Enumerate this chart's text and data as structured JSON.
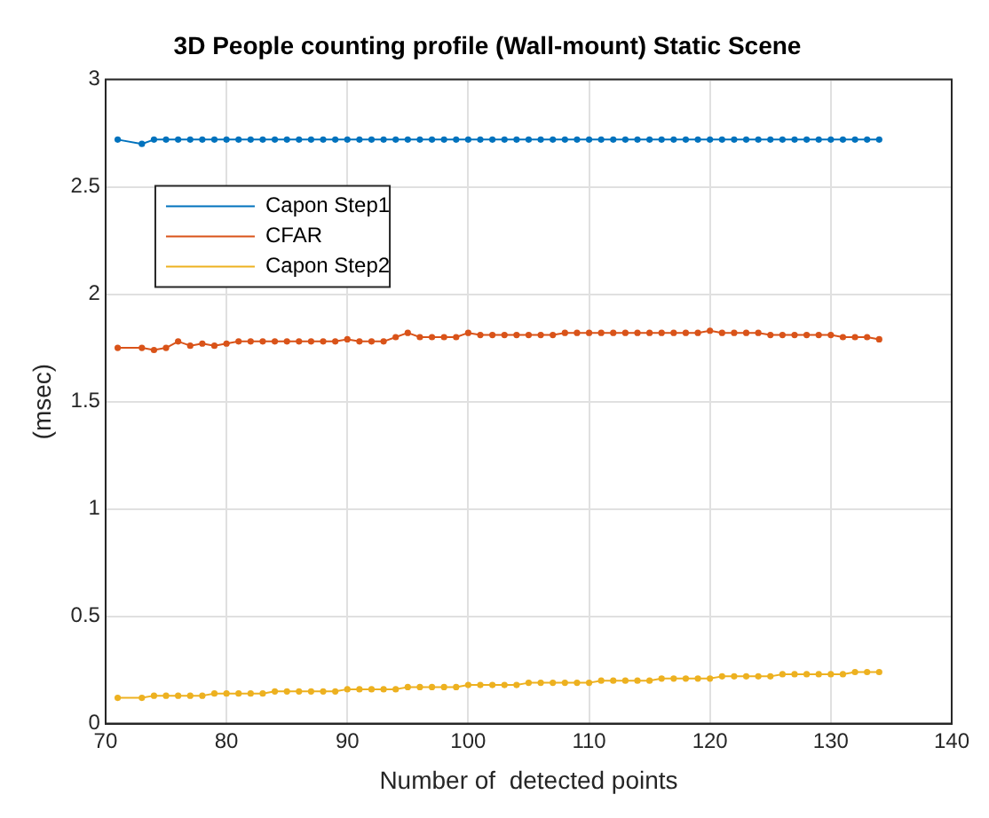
{
  "chart_data": {
    "type": "line",
    "title": "3D People counting profile (Wall-mount) Static Scene",
    "xlabel": "Number of  detected points",
    "ylabel": "(msec)",
    "x": [
      71,
      73,
      74,
      75,
      76,
      77,
      78,
      79,
      80,
      81,
      82,
      83,
      84,
      85,
      86,
      87,
      88,
      89,
      90,
      91,
      92,
      93,
      94,
      95,
      96,
      97,
      98,
      99,
      100,
      101,
      102,
      103,
      104,
      105,
      106,
      107,
      108,
      109,
      110,
      111,
      112,
      113,
      114,
      115,
      116,
      117,
      118,
      119,
      120,
      121,
      122,
      123,
      124,
      125,
      126,
      127,
      128,
      129,
      130,
      131,
      132,
      133,
      134
    ],
    "series": [
      {
        "name": "Capon Step1",
        "color": "#0072bd",
        "values": [
          2.72,
          2.7,
          2.72,
          2.72,
          2.72,
          2.72,
          2.72,
          2.72,
          2.72,
          2.72,
          2.72,
          2.72,
          2.72,
          2.72,
          2.72,
          2.72,
          2.72,
          2.72,
          2.72,
          2.72,
          2.72,
          2.72,
          2.72,
          2.72,
          2.72,
          2.72,
          2.72,
          2.72,
          2.72,
          2.72,
          2.72,
          2.72,
          2.72,
          2.72,
          2.72,
          2.72,
          2.72,
          2.72,
          2.72,
          2.72,
          2.72,
          2.72,
          2.72,
          2.72,
          2.72,
          2.72,
          2.72,
          2.72,
          2.72,
          2.72,
          2.72,
          2.72,
          2.72,
          2.72,
          2.72,
          2.72,
          2.72,
          2.72,
          2.72,
          2.72,
          2.72,
          2.72,
          2.72
        ]
      },
      {
        "name": "CFAR",
        "color": "#d95319",
        "values": [
          1.75,
          1.75,
          1.74,
          1.75,
          1.78,
          1.76,
          1.77,
          1.76,
          1.77,
          1.78,
          1.78,
          1.78,
          1.78,
          1.78,
          1.78,
          1.78,
          1.78,
          1.78,
          1.79,
          1.78,
          1.78,
          1.78,
          1.8,
          1.82,
          1.8,
          1.8,
          1.8,
          1.8,
          1.82,
          1.81,
          1.81,
          1.81,
          1.81,
          1.81,
          1.81,
          1.81,
          1.82,
          1.82,
          1.82,
          1.82,
          1.82,
          1.82,
          1.82,
          1.82,
          1.82,
          1.82,
          1.82,
          1.82,
          1.83,
          1.82,
          1.82,
          1.82,
          1.82,
          1.81,
          1.81,
          1.81,
          1.81,
          1.81,
          1.81,
          1.8,
          1.8,
          1.8,
          1.79
        ]
      },
      {
        "name": "Capon Step2",
        "color": "#edb120",
        "values": [
          0.12,
          0.12,
          0.13,
          0.13,
          0.13,
          0.13,
          0.13,
          0.14,
          0.14,
          0.14,
          0.14,
          0.14,
          0.15,
          0.15,
          0.15,
          0.15,
          0.15,
          0.15,
          0.16,
          0.16,
          0.16,
          0.16,
          0.16,
          0.17,
          0.17,
          0.17,
          0.17,
          0.17,
          0.18,
          0.18,
          0.18,
          0.18,
          0.18,
          0.19,
          0.19,
          0.19,
          0.19,
          0.19,
          0.19,
          0.2,
          0.2,
          0.2,
          0.2,
          0.2,
          0.21,
          0.21,
          0.21,
          0.21,
          0.21,
          0.22,
          0.22,
          0.22,
          0.22,
          0.22,
          0.23,
          0.23,
          0.23,
          0.23,
          0.23,
          0.23,
          0.24,
          0.24,
          0.24
        ]
      }
    ],
    "xlim": [
      70,
      140
    ],
    "xticks": [
      70,
      80,
      90,
      100,
      110,
      120,
      130,
      140
    ],
    "ylim": [
      0,
      3
    ],
    "yticks": [
      0,
      0.5,
      1,
      1.5,
      2,
      2.5,
      3
    ],
    "grid": true,
    "legend": "top left",
    "marker": "circle",
    "line_style": "solid"
  }
}
